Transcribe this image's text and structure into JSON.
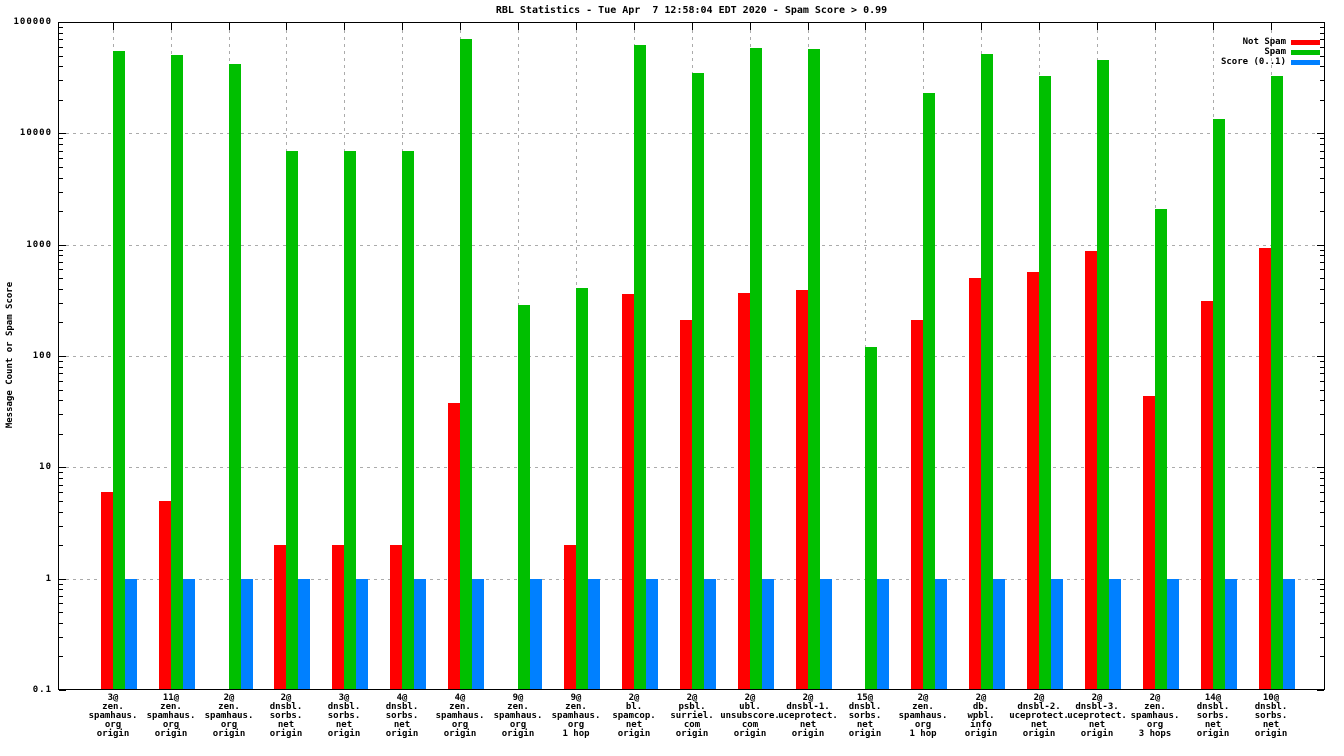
{
  "page": {
    "background": "#ffffff",
    "frame_color": "#000000",
    "grid_color": "#ababab"
  },
  "chart_data": {
    "type": "bar",
    "title": "RBL Statistics - Tue Apr  7 12:58:04 EDT 2020 - Spam Score > 0.99",
    "ylabel": "Message Count or Spam Score",
    "xlabel": "",
    "yscale": "log",
    "ylim": [
      0.1,
      100000
    ],
    "ytick_labels": [
      "100000",
      "10000",
      "1000",
      "100",
      "10",
      "1",
      "0.1"
    ],
    "grid": true,
    "legend_position": "top-right-inside",
    "categories": [
      [
        "3@",
        "zen.",
        "spamhaus.",
        "org",
        "origin"
      ],
      [
        "11@",
        "zen.",
        "spamhaus.",
        "org",
        "origin"
      ],
      [
        "2@",
        "zen.",
        "spamhaus.",
        "org",
        "origin"
      ],
      [
        "2@",
        "dnsbl.",
        "sorbs.",
        "net",
        "origin"
      ],
      [
        "3@",
        "dnsbl.",
        "sorbs.",
        "net",
        "origin"
      ],
      [
        "4@",
        "dnsbl.",
        "sorbs.",
        "net",
        "origin"
      ],
      [
        "4@",
        "zen.",
        "spamhaus.",
        "org",
        "origin"
      ],
      [
        "9@",
        "zen.",
        "spamhaus.",
        "org",
        "origin"
      ],
      [
        "9@",
        "zen.",
        "spamhaus.",
        "org",
        "1 hop"
      ],
      [
        "2@",
        "bl.",
        "spamcop.",
        "net",
        "origin"
      ],
      [
        "2@",
        "psbl.",
        "surriel.",
        "com",
        "origin"
      ],
      [
        "2@",
        "ubl.",
        "unsubscore.",
        "com",
        "origin"
      ],
      [
        "2@",
        "dnsbl-1.",
        "uceprotect.",
        "net",
        "origin"
      ],
      [
        "15@",
        "dnsbl.",
        "sorbs.",
        "net",
        "origin"
      ],
      [
        "2@",
        "zen.",
        "spamhaus.",
        "org",
        "1 hop"
      ],
      [
        "2@",
        "db.",
        "wpbl.",
        "info",
        "origin"
      ],
      [
        "2@",
        "dnsbl-2.",
        "uceprotect.",
        "net",
        "origin"
      ],
      [
        "2@",
        "dnsbl-3.",
        "uceprotect.",
        "net",
        "origin"
      ],
      [
        "2@",
        "zen.",
        "spamhaus.",
        "org",
        "3 hops"
      ],
      [
        "14@",
        "dnsbl.",
        "sorbs.",
        "net",
        "origin"
      ],
      [
        "10@",
        "dnsbl.",
        "sorbs.",
        "net",
        "origin"
      ]
    ],
    "series": [
      {
        "name": "Not Spam",
        "color": "#ff0000",
        "values": [
          6,
          5,
          null,
          2,
          2,
          2,
          38,
          null,
          2,
          360,
          210,
          370,
          395,
          null,
          210,
          505,
          570,
          880,
          44,
          315,
          930
        ]
      },
      {
        "name": "Spam",
        "color": "#00bf00",
        "values": [
          55000,
          51000,
          42000,
          7000,
          7000,
          7000,
          70000,
          290,
          410,
          62000,
          35000,
          58000,
          57000,
          120,
          23000,
          52000,
          33000,
          46000,
          2100,
          13500,
          33000
        ]
      },
      {
        "name": "Score (0..1)",
        "color": "#0080ff",
        "values": [
          1,
          1,
          1,
          1,
          1,
          1,
          1,
          1,
          1,
          1,
          1,
          1,
          1,
          1,
          1,
          1,
          1,
          1,
          1,
          1,
          1
        ]
      }
    ]
  }
}
